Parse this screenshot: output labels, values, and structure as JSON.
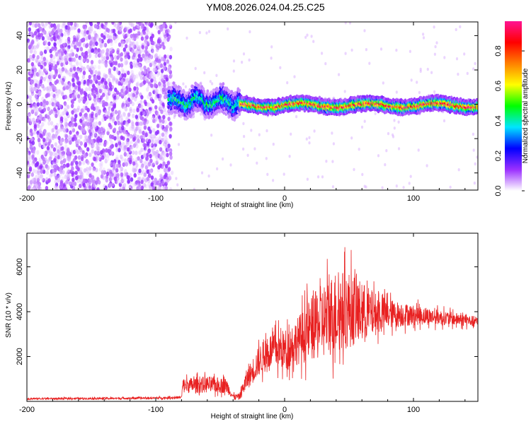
{
  "title": "YM08.2026.024.04.25.C25",
  "chart_data": [
    {
      "type": "heatmap",
      "title": "YM08.2026.024.04.25.C25",
      "xlabel": "Height of straight line (km)",
      "ylabel": "Frequency (Hz)",
      "xlim": [
        -200,
        150
      ],
      "ylim": [
        -50,
        48
      ],
      "xticks": [
        -200,
        -100,
        0,
        100
      ],
      "yticks": [
        -40,
        -20,
        0,
        20,
        40
      ],
      "colorbar": {
        "label": "Normalized spectral amplitude",
        "range": [
          0,
          0.97
        ],
        "ticks": [
          0.0,
          0.2,
          0.4,
          0.6,
          0.8
        ],
        "tick_labels": [
          "0.0",
          "0.2",
          "0.4",
          "0.6",
          "0.8"
        ],
        "colors": [
          "#ffffff",
          "#9b30ff",
          "#0000ff",
          "#00e5ff",
          "#00ff00",
          "#ffff00",
          "#ff8000",
          "#ff0000",
          "#ff1493"
        ]
      },
      "regions": [
        {
          "x_range": [
            -200,
            -90
          ],
          "description_free": true,
          "freq_range": [
            -50,
            48
          ],
          "amplitude_range": [
            0.0,
            0.12
          ]
        },
        {
          "x_range": [
            -90,
            -35
          ],
          "freq_center": 1.5,
          "freq_halfwidth": 6,
          "amplitude_peak": 0.45
        },
        {
          "x_range": [
            -35,
            150
          ],
          "freq_center": -0.5,
          "freq_halfwidth": 2.5,
          "amplitude_peak": 0.85
        }
      ]
    },
    {
      "type": "line",
      "xlabel": "Height of straight line (km)",
      "ylabel": "SNR (10 * v/v)",
      "xlim": [
        -200,
        150
      ],
      "ylim": [
        0,
        7500
      ],
      "xticks": [
        -200,
        -100,
        0,
        100
      ],
      "yticks": [
        2000,
        4000,
        6000
      ],
      "color": "#e82020",
      "envelope": {
        "x": [
          -200,
          -150,
          -100,
          -80,
          -79,
          -60,
          -45,
          -40,
          -35,
          -30,
          -20,
          -10,
          0,
          10,
          20,
          30,
          40,
          50,
          60,
          70,
          80,
          100,
          120,
          150
        ],
        "mean": [
          120,
          130,
          150,
          180,
          700,
          750,
          700,
          220,
          200,
          900,
          1800,
          2300,
          2300,
          2700,
          3200,
          3600,
          4000,
          4100,
          4000,
          3900,
          3900,
          3850,
          3750,
          3550
        ],
        "spread": [
          50,
          60,
          60,
          80,
          450,
          500,
          450,
          150,
          200,
          600,
          900,
          1100,
          1200,
          1400,
          1900,
          2300,
          2500,
          2300,
          1800,
          1300,
          900,
          600,
          450,
          300
        ]
      }
    }
  ]
}
